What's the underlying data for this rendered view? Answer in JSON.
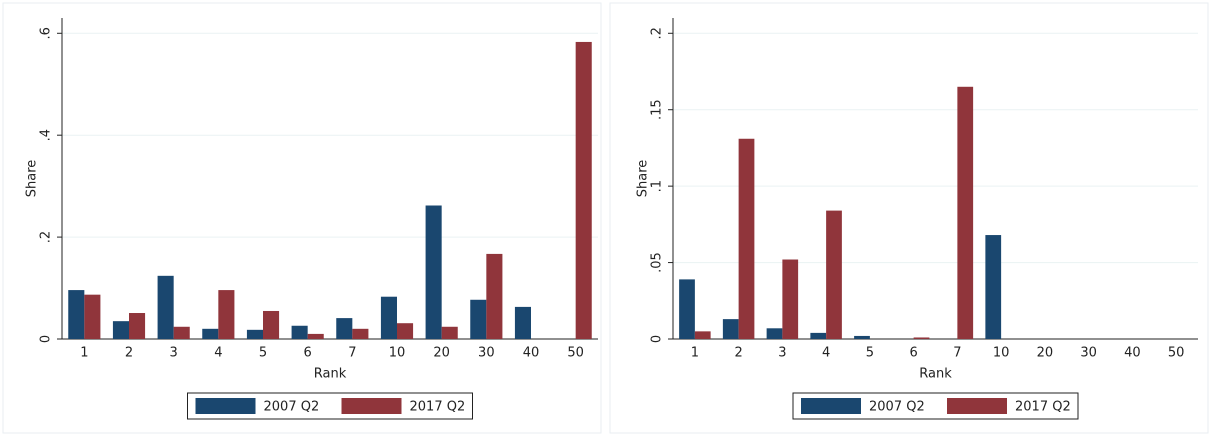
{
  "chart_data": [
    {
      "type": "bar",
      "x_label": "Rank",
      "y_label": "Share",
      "categories": [
        "1",
        "2",
        "3",
        "4",
        "5",
        "6",
        "7",
        "10",
        "20",
        "30",
        "40",
        "50"
      ],
      "series": [
        {
          "name": "2007 Q2",
          "color": "#1a476f",
          "values": [
            0.096,
            0.035,
            0.124,
            0.02,
            0.018,
            0.026,
            0.041,
            0.083,
            0.262,
            0.077,
            0.063,
            0
          ]
        },
        {
          "name": "2017 Q2",
          "color": "#90353b",
          "values": [
            0.087,
            0.051,
            0.024,
            0.096,
            0.055,
            0.01,
            0.02,
            0.031,
            0.024,
            0.167,
            0,
            0.583
          ]
        }
      ],
      "ylim": [
        0,
        0.63
      ],
      "yticks": [
        0,
        {
          "value": 0.2,
          "label": ".2"
        },
        {
          "value": 0.4,
          "label": ".4"
        },
        {
          "value": 0.6,
          "label": ".6"
        }
      ],
      "grid": true,
      "legend": "bottom"
    },
    {
      "type": "bar",
      "x_label": "Rank",
      "y_label": "Share",
      "categories": [
        "1",
        "2",
        "3",
        "4",
        "5",
        "6",
        "7",
        "10",
        "20",
        "30",
        "40",
        "50"
      ],
      "series": [
        {
          "name": "2007 Q2",
          "color": "#1a476f",
          "values": [
            0.039,
            0.013,
            0.007,
            0.004,
            0.002,
            0,
            0,
            0.068,
            0,
            0,
            0,
            0
          ]
        },
        {
          "name": "2017 Q2",
          "color": "#90353b",
          "values": [
            0.005,
            0.131,
            0.052,
            0.084,
            0,
            0.001,
            0.165,
            0,
            0,
            0,
            0,
            0
          ]
        }
      ],
      "ylim": [
        0,
        0.21
      ],
      "yticks": [
        0,
        {
          "value": 0.05,
          "label": ".05"
        },
        {
          "value": 0.1,
          "label": ".1"
        },
        {
          "value": 0.15,
          "label": ".15"
        },
        {
          "value": 0.2,
          "label": ".2"
        }
      ],
      "grid": true,
      "legend": "bottom"
    }
  ]
}
